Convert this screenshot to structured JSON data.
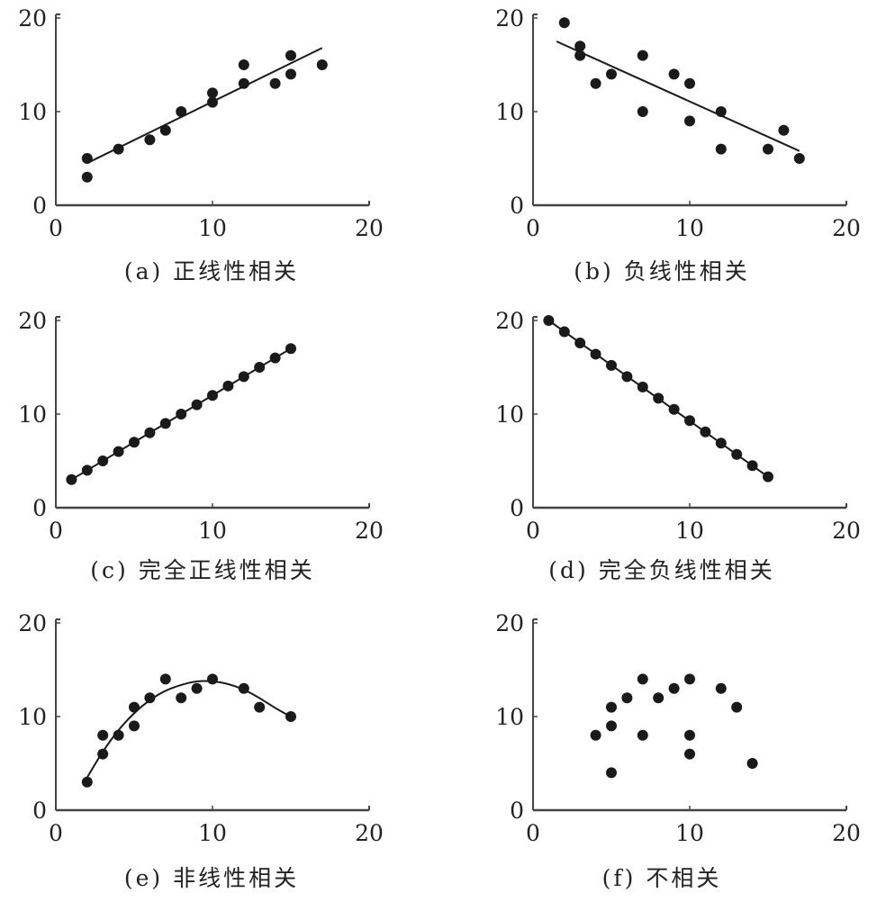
{
  "figure": {
    "panels": [
      {
        "id": "a",
        "caption": "(a)  正线性相关"
      },
      {
        "id": "b",
        "caption": "(b)  负线性相关"
      },
      {
        "id": "c",
        "caption": "(c)  完全正线性相关"
      },
      {
        "id": "d",
        "caption": "(d)  完全负线性相关"
      },
      {
        "id": "e",
        "caption": "(e)  非线性相关"
      },
      {
        "id": "f",
        "caption": "(f)  不相关"
      }
    ],
    "colors": {
      "ink": "#1a1a1a",
      "axis": "#444444",
      "background": "#ffffff"
    }
  },
  "chart_data": [
    {
      "id": "a",
      "type": "scatter",
      "title": "(a) 正线性相关",
      "xlabel": "",
      "ylabel": "",
      "xlim": [
        0,
        20
      ],
      "ylim": [
        0,
        20
      ],
      "xticks": [
        0,
        10,
        20
      ],
      "yticks": [
        0,
        10,
        20
      ],
      "grid": false,
      "points": [
        [
          2,
          3
        ],
        [
          2,
          5
        ],
        [
          4,
          6
        ],
        [
          6,
          7
        ],
        [
          7,
          8
        ],
        [
          8,
          10
        ],
        [
          10,
          11
        ],
        [
          10,
          12
        ],
        [
          12,
          13
        ],
        [
          12,
          15
        ],
        [
          14,
          13
        ],
        [
          15,
          14
        ],
        [
          15,
          16
        ],
        [
          17,
          15
        ]
      ],
      "fit_line": [
        [
          2,
          4.5
        ],
        [
          17,
          16.8
        ]
      ]
    },
    {
      "id": "b",
      "type": "scatter",
      "title": "(b) 负线性相关",
      "xlabel": "",
      "ylabel": "",
      "xlim": [
        0,
        20
      ],
      "ylim": [
        0,
        20
      ],
      "xticks": [
        0,
        10,
        20
      ],
      "yticks": [
        0,
        10,
        20
      ],
      "grid": false,
      "points": [
        [
          2,
          19.5
        ],
        [
          3,
          17
        ],
        [
          3,
          16
        ],
        [
          4,
          13
        ],
        [
          5,
          14
        ],
        [
          7,
          16
        ],
        [
          7,
          10
        ],
        [
          9,
          14
        ],
        [
          10,
          13
        ],
        [
          10,
          9
        ],
        [
          12,
          10
        ],
        [
          12,
          6
        ],
        [
          15,
          6
        ],
        [
          16,
          8
        ],
        [
          17,
          5
        ]
      ],
      "fit_line": [
        [
          1.5,
          17.5
        ],
        [
          17,
          5.8
        ]
      ]
    },
    {
      "id": "c",
      "type": "scatter",
      "title": "(c) 完全正线性相关",
      "xlabel": "",
      "ylabel": "",
      "xlim": [
        0,
        20
      ],
      "ylim": [
        0,
        20
      ],
      "xticks": [
        0,
        10,
        20
      ],
      "yticks": [
        0,
        10,
        20
      ],
      "grid": false,
      "points": [
        [
          1,
          3
        ],
        [
          2,
          4
        ],
        [
          3,
          5
        ],
        [
          4,
          6
        ],
        [
          5,
          7
        ],
        [
          6,
          8
        ],
        [
          7,
          9
        ],
        [
          8,
          10
        ],
        [
          9,
          11
        ],
        [
          10,
          12
        ],
        [
          11,
          13
        ],
        [
          12,
          14
        ],
        [
          13,
          15
        ],
        [
          14,
          16
        ],
        [
          15,
          17
        ]
      ],
      "fit_line": [
        [
          1,
          3
        ],
        [
          15,
          17
        ]
      ]
    },
    {
      "id": "d",
      "type": "scatter",
      "title": "(d) 完全负线性相关",
      "xlabel": "",
      "ylabel": "",
      "xlim": [
        0,
        20
      ],
      "ylim": [
        0,
        20
      ],
      "xticks": [
        0,
        10,
        20
      ],
      "yticks": [
        0,
        10,
        20
      ],
      "grid": false,
      "points": [
        [
          1,
          20
        ],
        [
          2,
          18.8
        ],
        [
          3,
          17.6
        ],
        [
          4,
          16.4
        ],
        [
          5,
          15.2
        ],
        [
          6,
          14
        ],
        [
          7,
          12.9
        ],
        [
          8,
          11.7
        ],
        [
          9,
          10.5
        ],
        [
          10,
          9.3
        ],
        [
          11,
          8.1
        ],
        [
          12,
          6.9
        ],
        [
          13,
          5.7
        ],
        [
          14,
          4.5
        ],
        [
          15,
          3.3
        ]
      ],
      "fit_line": [
        [
          1,
          20
        ],
        [
          15,
          3.3
        ]
      ]
    },
    {
      "id": "e",
      "type": "scatter",
      "title": "(e) 非线性相关",
      "xlabel": "",
      "ylabel": "",
      "xlim": [
        0,
        20
      ],
      "ylim": [
        0,
        20
      ],
      "xticks": [
        0,
        10,
        20
      ],
      "yticks": [
        0,
        10,
        20
      ],
      "grid": false,
      "points": [
        [
          2,
          3
        ],
        [
          3,
          8
        ],
        [
          3,
          6
        ],
        [
          4,
          8
        ],
        [
          5,
          11
        ],
        [
          5,
          9
        ],
        [
          6,
          12
        ],
        [
          7,
          14
        ],
        [
          8,
          12
        ],
        [
          9,
          13
        ],
        [
          10,
          14
        ],
        [
          12,
          13
        ],
        [
          13,
          11
        ],
        [
          15,
          10
        ]
      ],
      "fit_curve": [
        [
          2,
          3.5
        ],
        [
          3,
          6.3
        ],
        [
          4,
          8.6
        ],
        [
          5,
          10.4
        ],
        [
          6,
          11.8
        ],
        [
          7,
          12.8
        ],
        [
          8,
          13.4
        ],
        [
          9,
          13.8
        ],
        [
          10,
          13.8
        ],
        [
          11,
          13.5
        ],
        [
          12,
          12.9
        ],
        [
          13,
          12
        ],
        [
          14,
          10.9
        ],
        [
          15,
          10
        ]
      ]
    },
    {
      "id": "f",
      "type": "scatter",
      "title": "(f) 不相关",
      "xlabel": "",
      "ylabel": "",
      "xlim": [
        0,
        20
      ],
      "ylim": [
        0,
        20
      ],
      "xticks": [
        0,
        10,
        20
      ],
      "yticks": [
        0,
        10,
        20
      ],
      "grid": false,
      "points": [
        [
          4,
          8
        ],
        [
          5,
          11
        ],
        [
          5,
          9
        ],
        [
          5,
          4
        ],
        [
          6,
          12
        ],
        [
          7,
          14
        ],
        [
          7,
          8
        ],
        [
          8,
          12
        ],
        [
          9,
          13
        ],
        [
          10,
          14
        ],
        [
          10,
          8
        ],
        [
          10,
          6
        ],
        [
          12,
          13
        ],
        [
          13,
          11
        ],
        [
          14,
          5
        ]
      ]
    }
  ]
}
